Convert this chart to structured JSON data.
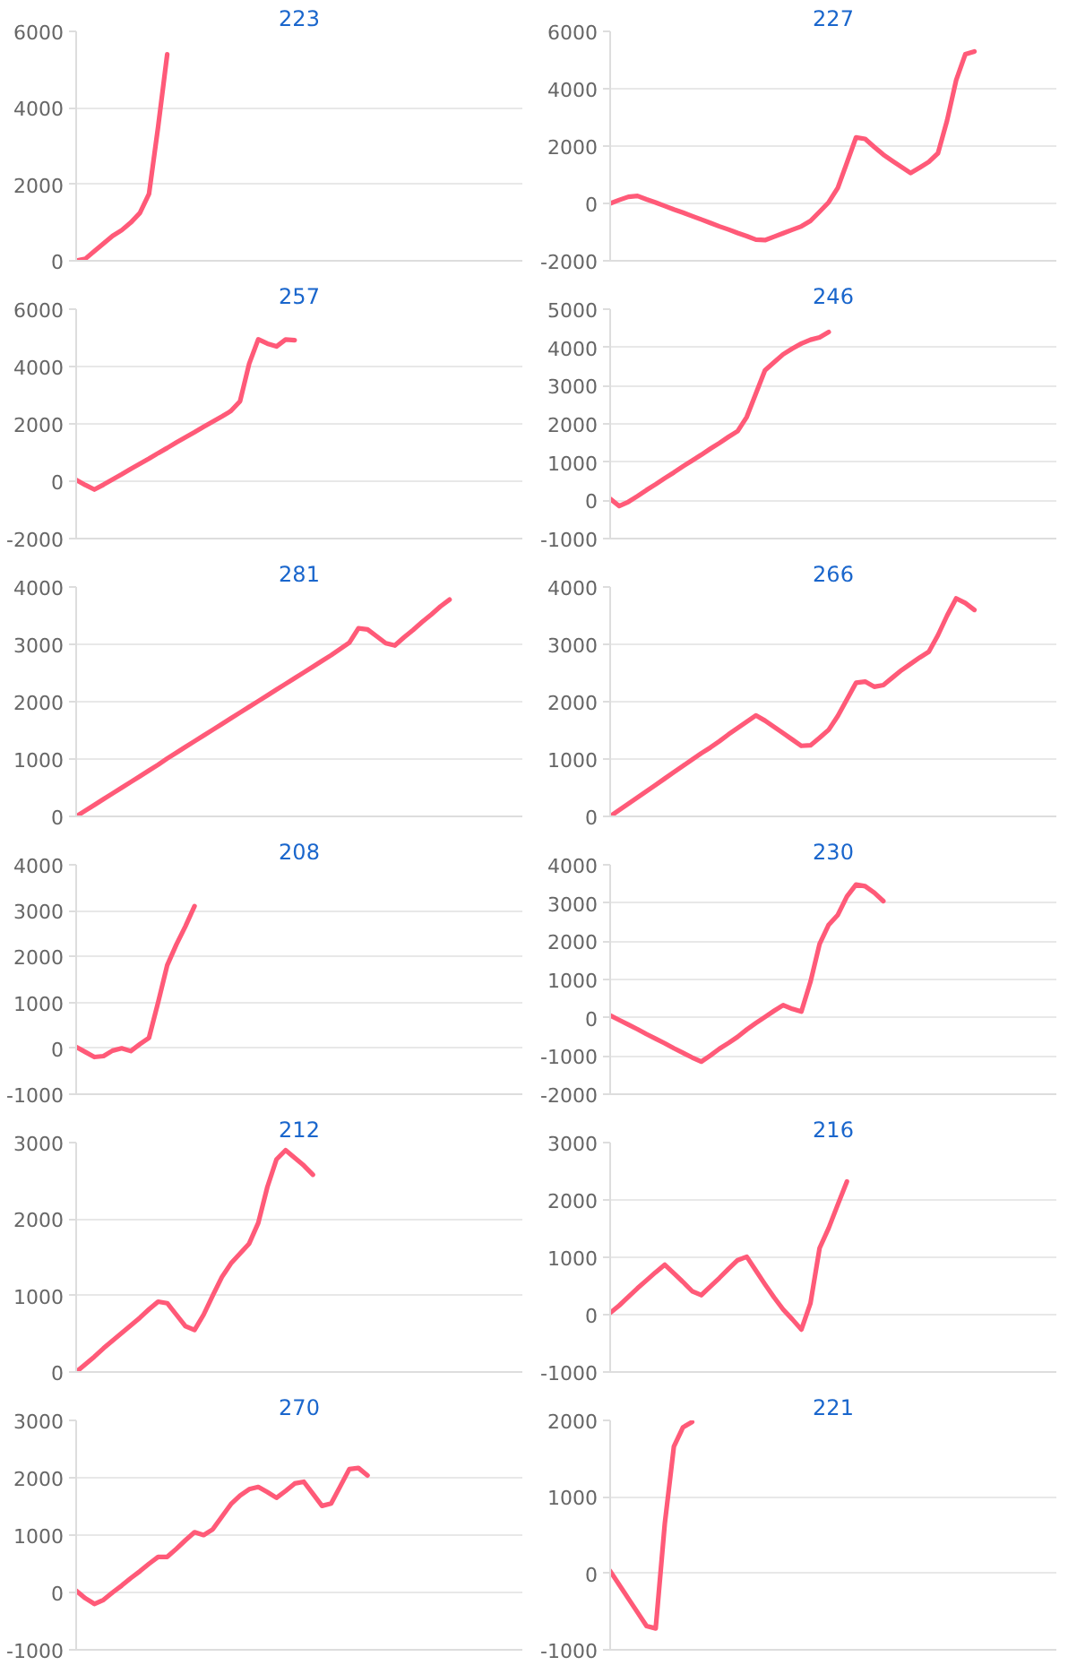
{
  "chart_data": [
    {
      "type": "line",
      "title": "223",
      "color": "#ff5a78",
      "ylim": [
        0,
        6000
      ],
      "yticks": [
        0,
        2000,
        4000,
        6000
      ],
      "grid": "y",
      "tick_labels": "y",
      "categories": [
        null,
        null,
        null,
        null,
        null,
        null,
        null,
        null,
        null,
        null,
        null,
        null,
        null,
        null,
        null,
        null,
        null,
        null,
        null,
        null,
        null,
        null,
        null,
        null,
        null,
        null,
        null,
        null,
        null,
        null,
        null,
        null,
        null,
        null,
        null,
        null,
        null,
        null,
        null,
        null,
        null,
        null,
        null,
        null,
        null,
        null,
        null,
        null,
        null,
        null
      ],
      "values": [
        0,
        50,
        250,
        450,
        650,
        800,
        1000,
        1250,
        1750,
        3500,
        5400,
        null,
        null,
        null,
        null,
        null,
        null,
        null,
        null,
        null,
        null,
        null,
        null,
        null,
        null,
        null,
        null,
        null,
        null,
        null,
        null,
        null,
        null,
        null,
        null,
        null,
        null,
        null,
        null,
        null,
        null,
        null,
        null,
        null,
        null,
        null,
        null,
        null,
        null,
        null
      ]
    },
    {
      "type": "line",
      "title": "227",
      "color": "#ff5a78",
      "ylim": [
        -2000,
        6000
      ],
      "yticks": [
        -2000,
        0,
        2000,
        4000,
        6000
      ],
      "grid": "y",
      "tick_labels": "y",
      "categories": [
        null,
        null,
        null,
        null,
        null,
        null,
        null,
        null,
        null,
        null,
        null,
        null,
        null,
        null,
        null,
        null,
        null,
        null,
        null,
        null,
        null,
        null,
        null,
        null,
        null,
        null,
        null,
        null,
        null,
        null,
        null,
        null,
        null,
        null,
        null,
        null,
        null,
        null,
        null,
        null,
        null,
        null,
        null,
        null,
        null,
        null,
        null,
        null,
        null,
        null
      ],
      "values": [
        0,
        120,
        230,
        260,
        140,
        30,
        -90,
        -210,
        -320,
        -440,
        -560,
        -680,
        -800,
        -910,
        -1030,
        -1140,
        -1260,
        -1280,
        -1160,
        -1040,
        -920,
        -800,
        -610,
        -290,
        40,
        540,
        1420,
        2300,
        2250,
        1970,
        1700,
        1480,
        1270,
        1060,
        1250,
        1450,
        1750,
        2890,
        4300,
        5200,
        5300,
        null,
        null,
        null,
        null,
        null,
        null,
        null,
        null,
        null
      ]
    },
    {
      "type": "line",
      "title": "257",
      "color": "#ff5a78",
      "ylim": [
        -2000,
        6000
      ],
      "yticks": [
        -2000,
        0,
        2000,
        4000,
        6000
      ],
      "grid": "y",
      "tick_labels": "y",
      "categories": [
        null,
        null,
        null,
        null,
        null,
        null,
        null,
        null,
        null,
        null,
        null,
        null,
        null,
        null,
        null,
        null,
        null,
        null,
        null,
        null,
        null,
        null,
        null,
        null,
        null,
        null,
        null,
        null,
        null,
        null,
        null,
        null,
        null,
        null,
        null,
        null,
        null,
        null,
        null,
        null,
        null,
        null,
        null,
        null,
        null,
        null,
        null,
        null,
        null,
        null
      ],
      "values": [
        50,
        -130,
        -290,
        -120,
        60,
        240,
        430,
        610,
        790,
        980,
        1160,
        1350,
        1530,
        1710,
        1900,
        2080,
        2260,
        2450,
        2790,
        4100,
        4950,
        4800,
        4700,
        4940,
        4920,
        null,
        null,
        null,
        null,
        null,
        null,
        null,
        null,
        null,
        null,
        null,
        null,
        null,
        null,
        null,
        null,
        null,
        null,
        null,
        null,
        null,
        null,
        null,
        null,
        null
      ]
    },
    {
      "type": "line",
      "title": "246",
      "color": "#ff5a78",
      "ylim": [
        -1000,
        5000
      ],
      "yticks": [
        -1000,
        0,
        1000,
        2000,
        3000,
        4000,
        5000
      ],
      "grid": "y",
      "tick_labels": "y",
      "categories": [
        null,
        null,
        null,
        null,
        null,
        null,
        null,
        null,
        null,
        null,
        null,
        null,
        null,
        null,
        null,
        null,
        null,
        null,
        null,
        null,
        null,
        null,
        null,
        null,
        null,
        null,
        null,
        null,
        null,
        null,
        null,
        null,
        null,
        null,
        null,
        null,
        null,
        null,
        null,
        null,
        null,
        null,
        null,
        null,
        null,
        null,
        null,
        null,
        null,
        null
      ],
      "values": [
        40,
        -150,
        -40,
        110,
        270,
        420,
        580,
        730,
        890,
        1040,
        1190,
        1350,
        1500,
        1660,
        1810,
        2180,
        2790,
        3400,
        3610,
        3820,
        3970,
        4100,
        4200,
        4260,
        4400,
        null,
        null,
        null,
        null,
        null,
        null,
        null,
        null,
        null,
        null,
        null,
        null,
        null,
        null,
        null,
        null,
        null,
        null,
        null,
        null,
        null,
        null,
        null,
        null,
        null
      ]
    },
    {
      "type": "line",
      "title": "281",
      "color": "#ff5a78",
      "ylim": [
        0,
        4000
      ],
      "yticks": [
        0,
        1000,
        2000,
        3000,
        4000
      ],
      "grid": "y",
      "tick_labels": "y",
      "categories": [
        null,
        null,
        null,
        null,
        null,
        null,
        null,
        null,
        null,
        null,
        null,
        null,
        null,
        null,
        null,
        null,
        null,
        null,
        null,
        null,
        null,
        null,
        null,
        null,
        null,
        null,
        null,
        null,
        null,
        null,
        null,
        null,
        null,
        null,
        null,
        null,
        null,
        null,
        null,
        null,
        null,
        null,
        null,
        null,
        null,
        null,
        null,
        null,
        null,
        null
      ],
      "values": [
        0,
        100,
        200,
        300,
        400,
        500,
        600,
        700,
        800,
        900,
        1010,
        1110,
        1210,
        1310,
        1410,
        1510,
        1610,
        1710,
        1810,
        1910,
        2010,
        2110,
        2210,
        2310,
        2410,
        2510,
        2610,
        2710,
        2810,
        2920,
        3030,
        3280,
        3260,
        3140,
        3020,
        2980,
        3120,
        3250,
        3390,
        3520,
        3660,
        3780,
        null,
        null,
        null,
        null,
        null,
        null,
        null,
        null
      ]
    },
    {
      "type": "line",
      "title": "266",
      "color": "#ff5a78",
      "ylim": [
        0,
        4000
      ],
      "yticks": [
        0,
        1000,
        2000,
        3000,
        4000
      ],
      "grid": "y",
      "tick_labels": "y",
      "categories": [
        null,
        null,
        null,
        null,
        null,
        null,
        null,
        null,
        null,
        null,
        null,
        null,
        null,
        null,
        null,
        null,
        null,
        null,
        null,
        null,
        null,
        null,
        null,
        null,
        null,
        null,
        null,
        null,
        null,
        null,
        null,
        null,
        null,
        null,
        null,
        null,
        null,
        null,
        null,
        null,
        null,
        null,
        null,
        null,
        null,
        null,
        null,
        null,
        null,
        null
      ],
      "values": [
        0,
        110,
        220,
        330,
        440,
        550,
        660,
        770,
        880,
        990,
        1100,
        1200,
        1310,
        1430,
        1540,
        1650,
        1760,
        1670,
        1560,
        1450,
        1340,
        1230,
        1240,
        1370,
        1510,
        1750,
        2040,
        2330,
        2350,
        2260,
        2290,
        2420,
        2550,
        2660,
        2770,
        2870,
        3160,
        3500,
        3800,
        3720,
        3600,
        null,
        null,
        null,
        null,
        null,
        null,
        null,
        null,
        null
      ]
    },
    {
      "type": "line",
      "title": "208",
      "color": "#ff5a78",
      "ylim": [
        -1000,
        4000
      ],
      "yticks": [
        -1000,
        0,
        1000,
        2000,
        3000,
        4000
      ],
      "grid": "y",
      "tick_labels": "y",
      "categories": [
        null,
        null,
        null,
        null,
        null,
        null,
        null,
        null,
        null,
        null,
        null,
        null,
        null,
        null,
        null,
        null,
        null,
        null,
        null,
        null,
        null,
        null,
        null,
        null,
        null,
        null,
        null,
        null,
        null,
        null,
        null,
        null,
        null,
        null,
        null,
        null,
        null,
        null,
        null,
        null,
        null,
        null,
        null,
        null,
        null,
        null,
        null,
        null,
        null,
        null
      ],
      "values": [
        30,
        -80,
        -190,
        -170,
        -50,
        0,
        -60,
        90,
        230,
        1000,
        1810,
        2260,
        2660,
        3100,
        null,
        null,
        null,
        null,
        null,
        null,
        null,
        null,
        null,
        null,
        null,
        null,
        null,
        null,
        null,
        null,
        null,
        null,
        null,
        null,
        null,
        null,
        null,
        null,
        null,
        null,
        null,
        null,
        null,
        null,
        null,
        null,
        null,
        null,
        null,
        null
      ]
    },
    {
      "type": "line",
      "title": "230",
      "color": "#ff5a78",
      "ylim": [
        -2000,
        4000
      ],
      "yticks": [
        -2000,
        -1000,
        0,
        1000,
        2000,
        3000,
        4000
      ],
      "grid": "y",
      "tick_labels": "y",
      "categories": [
        null,
        null,
        null,
        null,
        null,
        null,
        null,
        null,
        null,
        null,
        null,
        null,
        null,
        null,
        null,
        null,
        null,
        null,
        null,
        null,
        null,
        null,
        null,
        null,
        null,
        null,
        null,
        null,
        null,
        null,
        null,
        null,
        null,
        null,
        null,
        null,
        null,
        null,
        null,
        null,
        null,
        null,
        null,
        null,
        null,
        null,
        null,
        null,
        null,
        null
      ],
      "values": [
        60,
        -60,
        -180,
        -300,
        -430,
        -550,
        -670,
        -800,
        -920,
        -1040,
        -1150,
        -990,
        -810,
        -660,
        -500,
        -310,
        -140,
        20,
        180,
        330,
        230,
        160,
        940,
        1930,
        2430,
        2690,
        3170,
        3480,
        3440,
        3270,
        3050,
        null,
        null,
        null,
        null,
        null,
        null,
        null,
        null,
        null,
        null,
        null,
        null,
        null,
        null,
        null,
        null,
        null,
        null,
        null
      ]
    },
    {
      "type": "line",
      "title": "212",
      "color": "#ff5a78",
      "ylim": [
        0,
        3000
      ],
      "yticks": [
        0,
        1000,
        2000,
        3000
      ],
      "grid": "y",
      "tick_labels": "y",
      "categories": [
        null,
        null,
        null,
        null,
        null,
        null,
        null,
        null,
        null,
        null,
        null,
        null,
        null,
        null,
        null,
        null,
        null,
        null,
        null,
        null,
        null,
        null,
        null,
        null,
        null,
        null,
        null,
        null,
        null,
        null,
        null,
        null,
        null,
        null,
        null,
        null,
        null,
        null,
        null,
        null,
        null,
        null,
        null,
        null,
        null,
        null,
        null,
        null,
        null,
        null
      ],
      "values": [
        0,
        100,
        200,
        310,
        410,
        510,
        610,
        710,
        820,
        920,
        900,
        750,
        600,
        550,
        750,
        1000,
        1240,
        1420,
        1550,
        1680,
        1950,
        2420,
        2780,
        2900,
        2800,
        2700,
        2580,
        null,
        null,
        null,
        null,
        null,
        null,
        null,
        null,
        null,
        null,
        null,
        null,
        null,
        null,
        null,
        null,
        null,
        null,
        null,
        null,
        null,
        null,
        null
      ]
    },
    {
      "type": "line",
      "title": "216",
      "color": "#ff5a78",
      "ylim": [
        -1000,
        3000
      ],
      "yticks": [
        -1000,
        0,
        1000,
        2000,
        3000
      ],
      "grid": "y",
      "tick_labels": "y",
      "categories": [
        null,
        null,
        null,
        null,
        null,
        null,
        null,
        null,
        null,
        null,
        null,
        null,
        null,
        null,
        null,
        null,
        null,
        null,
        null,
        null,
        null,
        null,
        null,
        null,
        null,
        null,
        null,
        null,
        null,
        null,
        null,
        null,
        null,
        null,
        null,
        null,
        null,
        null,
        null,
        null,
        null,
        null,
        null,
        null,
        null,
        null,
        null,
        null,
        null,
        null
      ],
      "values": [
        30,
        160,
        310,
        460,
        600,
        740,
        870,
        720,
        570,
        410,
        340,
        490,
        640,
        800,
        950,
        1010,
        770,
        530,
        300,
        90,
        -80,
        -260,
        200,
        1160,
        1510,
        1920,
        2320,
        null,
        null,
        null,
        null,
        null,
        null,
        null,
        null,
        null,
        null,
        null,
        null,
        null,
        null,
        null,
        null,
        null,
        null,
        null,
        null,
        null,
        null,
        null
      ]
    },
    {
      "type": "line",
      "title": "270",
      "color": "#ff5a78",
      "ylim": [
        -1000,
        3000
      ],
      "yticks": [
        -1000,
        0,
        1000,
        2000,
        3000
      ],
      "grid": "y",
      "tick_labels": "y",
      "categories": [
        null,
        null,
        null,
        null,
        null,
        null,
        null,
        null,
        null,
        null,
        null,
        null,
        null,
        null,
        null,
        null,
        null,
        null,
        null,
        null,
        null,
        null,
        null,
        null,
        null,
        null,
        null,
        null,
        null,
        null,
        null,
        null,
        null,
        null,
        null,
        null,
        null,
        null,
        null,
        null,
        null,
        null,
        null,
        null,
        null,
        null,
        null,
        null,
        null,
        null
      ],
      "values": [
        30,
        -100,
        -200,
        -130,
        0,
        120,
        250,
        370,
        500,
        620,
        620,
        760,
        910,
        1050,
        1000,
        1100,
        1320,
        1540,
        1690,
        1800,
        1840,
        1750,
        1650,
        1770,
        1900,
        1930,
        1720,
        1510,
        1550,
        1850,
        2150,
        2170,
        2040,
        null,
        null,
        null,
        null,
        null,
        null,
        null,
        null,
        null,
        null,
        null,
        null,
        null,
        null,
        null,
        null,
        null
      ]
    },
    {
      "type": "line",
      "title": "221",
      "color": "#ff5a78",
      "ylim": [
        -1000,
        2000
      ],
      "yticks": [
        -1000,
        0,
        1000,
        2000
      ],
      "grid": "y",
      "tick_labels": "y",
      "categories": [
        null,
        null,
        null,
        null,
        null,
        null,
        null,
        null,
        null,
        null,
        null,
        null,
        null,
        null,
        null,
        null,
        null,
        null,
        null,
        null,
        null,
        null,
        null,
        null,
        null,
        null,
        null,
        null,
        null,
        null,
        null,
        null,
        null,
        null,
        null,
        null,
        null,
        null,
        null,
        null,
        null,
        null,
        null,
        null,
        null,
        null,
        null,
        null,
        null,
        null
      ],
      "values": [
        30,
        -150,
        -330,
        -510,
        -690,
        -720,
        650,
        1660,
        1910,
        1980,
        null,
        null,
        null,
        null,
        null,
        null,
        null,
        null,
        null,
        null,
        null,
        null,
        null,
        null,
        null,
        null,
        null,
        null,
        null,
        null,
        null,
        null,
        null,
        null,
        null,
        null,
        null,
        null,
        null,
        null,
        null,
        null,
        null,
        null,
        null,
        null,
        null,
        null,
        null,
        null
      ]
    }
  ]
}
